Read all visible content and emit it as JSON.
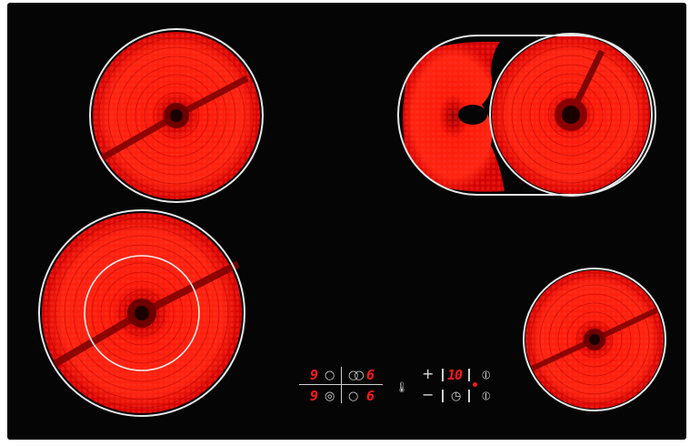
{
  "colors": {
    "glass": "#050505",
    "heat": "#ff1a0a",
    "heat_dark": "#b00000",
    "rim": "#e8e8e8",
    "display": "#ff1a1a"
  },
  "zones": [
    {
      "id": "rear-left",
      "level": 9
    },
    {
      "id": "rear-right-extended",
      "level": 6
    },
    {
      "id": "front-left-dual",
      "level": 9
    },
    {
      "id": "front-right",
      "level": 6
    }
  ],
  "panel": {
    "rear_left_level": "9",
    "rear_right_level": "6",
    "front_left_level": "9",
    "front_right_level": "6",
    "timer_value": "10",
    "plus": "+",
    "minus": "−",
    "icons": {
      "zone_single": "circle-icon",
      "zone_dual": "double-circle-icon",
      "zone_extended": "extended-zone-icon",
      "residual_heat": "thermometer-icon",
      "timer": "clock-icon",
      "power": "power-icon"
    }
  }
}
